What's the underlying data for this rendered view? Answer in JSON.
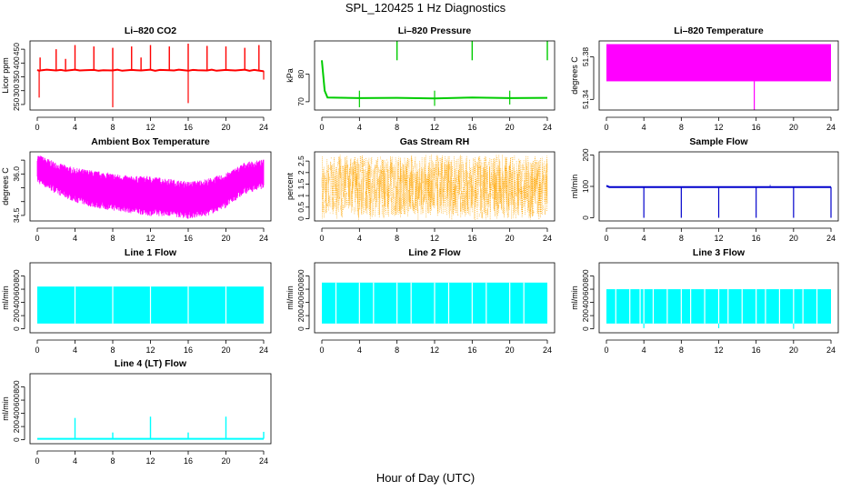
{
  "page": {
    "title": "SPL_120425  1 Hz Diagnostics",
    "xlabel": "Hour of Day (UTC)"
  },
  "chart_data": [
    {
      "type": "line",
      "title": "Li–820 CO2",
      "ylabel": "Licor ppm",
      "color": "#ff0000",
      "xlim": [
        0,
        24
      ],
      "xticks": [
        "0",
        "4",
        "8",
        "12",
        "16",
        "20",
        "24"
      ],
      "ylim": [
        230,
        480
      ],
      "yticks": [
        250,
        300,
        350,
        400,
        450
      ],
      "series": [
        {
          "x": [
            0,
            0.2,
            0.5,
            1,
            2,
            2.5,
            3,
            4,
            4.5,
            5,
            6,
            6.5,
            7,
            8,
            8.5,
            9,
            10,
            10.5,
            11,
            12,
            12.5,
            13,
            14,
            14.5,
            15,
            16,
            16.5,
            17,
            18,
            18.5,
            19,
            20,
            20.5,
            21,
            22,
            22.5,
            23,
            24
          ],
          "y": [
            375,
            372,
            374,
            376,
            373,
            375,
            372,
            376,
            373,
            374,
            375,
            372,
            374,
            373,
            376,
            372,
            375,
            374,
            373,
            376,
            372,
            375,
            374,
            373,
            376,
            372,
            375,
            374,
            373,
            376,
            372,
            375,
            374,
            373,
            376,
            372,
            375,
            370
          ]
        }
      ],
      "spikes_up": [
        [
          0.3,
          420
        ],
        [
          2,
          450
        ],
        [
          3,
          415
        ],
        [
          4,
          465
        ],
        [
          6,
          460
        ],
        [
          8,
          455
        ],
        [
          10,
          460
        ],
        [
          11,
          420
        ],
        [
          12,
          465
        ],
        [
          14,
          460
        ],
        [
          16,
          470
        ],
        [
          18,
          462
        ],
        [
          20,
          460
        ],
        [
          22,
          455
        ],
        [
          23.5,
          465
        ]
      ],
      "spikes_down": [
        [
          0.2,
          275
        ],
        [
          8,
          240
        ],
        [
          16,
          255
        ],
        [
          24,
          340
        ]
      ]
    },
    {
      "type": "line",
      "title": "Li–820 Pressure",
      "ylabel": "kPa",
      "color": "#00cc00",
      "xlim": [
        0,
        24
      ],
      "xticks": [
        "0",
        "4",
        "8",
        "12",
        "16",
        "20",
        "24"
      ],
      "ylim": [
        67,
        92
      ],
      "yticks": [
        70,
        80
      ],
      "series": [
        {
          "x": [
            0,
            0.3,
            0.6,
            4,
            8,
            12,
            16,
            20,
            24
          ],
          "y": [
            85,
            74,
            71.5,
            71.3,
            71.4,
            71.2,
            71.5,
            71.3,
            71.4
          ]
        }
      ],
      "spikes_up": [
        [
          8,
          92
        ],
        [
          16,
          92
        ],
        [
          24,
          92
        ]
      ],
      "spikes_down": [
        [
          4,
          68
        ],
        [
          12,
          68.5
        ],
        [
          20,
          69
        ]
      ]
    },
    {
      "type": "area",
      "title": "Li–820 Temperature",
      "ylabel": "degrees C",
      "color": "#ff00ff",
      "xlim": [
        0,
        24
      ],
      "xticks": [
        "0",
        "4",
        "8",
        "12",
        "16",
        "20",
        "24"
      ],
      "ylim": [
        51.33,
        51.395
      ],
      "yticks": [
        51.34,
        51.38
      ],
      "band": {
        "low": 51.357,
        "high": 51.392
      },
      "spikes_down": [
        [
          15.8,
          51.33
        ]
      ]
    },
    {
      "type": "area",
      "title": "Ambient Box Temperature",
      "ylabel": "degrees C",
      "color": "#ff00ff",
      "xlim": [
        0,
        24
      ],
      "xticks": [
        "0",
        "4",
        "8",
        "12",
        "16",
        "20",
        "24"
      ],
      "ylim": [
        34.3,
        36.8
      ],
      "yticks": [
        34.5,
        35.0,
        35.5,
        36.0,
        36.5
      ],
      "yticklabels": [
        "34.5",
        "",
        "",
        "36.0",
        ""
      ],
      "series": [
        {
          "name": "upper",
          "x": [
            0,
            2,
            4,
            6,
            8,
            10,
            12,
            14,
            16,
            18,
            20,
            22,
            24
          ],
          "y": [
            36.6,
            36.3,
            36.1,
            36.0,
            35.9,
            35.8,
            35.8,
            35.7,
            35.6,
            35.7,
            35.9,
            36.3,
            36.4
          ]
        },
        {
          "name": "lower",
          "x": [
            0,
            2,
            4,
            6,
            8,
            10,
            12,
            14,
            16,
            18,
            20,
            22,
            24
          ],
          "y": [
            35.8,
            35.4,
            35.1,
            34.9,
            34.8,
            34.7,
            34.6,
            34.6,
            34.5,
            34.6,
            34.9,
            35.4,
            35.6
          ]
        }
      ]
    },
    {
      "type": "area",
      "title": "Gas Stream RH",
      "ylabel": "percent",
      "color": "#ffa500",
      "xlim": [
        0,
        24
      ],
      "xticks": [
        "0",
        "4",
        "8",
        "12",
        "16",
        "20",
        "24"
      ],
      "ylim": [
        -0.1,
        2.9
      ],
      "yticks": [
        0.0,
        0.5,
        1.0,
        1.5,
        2.0,
        2.5
      ],
      "band": {
        "low": -0.05,
        "high": 2.8
      }
    },
    {
      "type": "line",
      "title": "Sample Flow",
      "ylabel": "ml/min",
      "color": "#0000cc",
      "xlim": [
        0,
        24
      ],
      "xticks": [
        "0",
        "4",
        "8",
        "12",
        "16",
        "20",
        "24"
      ],
      "ylim": [
        -10,
        210
      ],
      "yticks": [
        0,
        100,
        200
      ],
      "series": [
        {
          "x": [
            0,
            0.3,
            24
          ],
          "y": [
            102,
            98,
            98
          ]
        }
      ],
      "spikes_up": [
        [
          17.5,
          104
        ]
      ],
      "spikes_down": [
        [
          4,
          0
        ],
        [
          8,
          0
        ],
        [
          12,
          0
        ],
        [
          16,
          0
        ],
        [
          20,
          0
        ],
        [
          24,
          0
        ]
      ]
    },
    {
      "type": "area",
      "title": "Line 1 Flow",
      "ylabel": "ml/min",
      "color": "#00ffff",
      "xlim": [
        0,
        24
      ],
      "xticks": [
        "0",
        "4",
        "8",
        "12",
        "16",
        "20",
        "24"
      ],
      "ylim": [
        -60,
        1000
      ],
      "yticks": [
        0,
        200,
        400,
        600,
        800
      ],
      "band": {
        "low": 80,
        "high": 640
      },
      "gaps": [
        4,
        8,
        12,
        16,
        20
      ]
    },
    {
      "type": "area",
      "title": "Line 2 Flow",
      "ylabel": "ml/min",
      "color": "#00ffff",
      "xlim": [
        0,
        24
      ],
      "xticks": [
        "0",
        "4",
        "8",
        "12",
        "16",
        "20",
        "24"
      ],
      "ylim": [
        -60,
        1000
      ],
      "yticks": [
        0,
        200,
        400,
        600,
        800
      ],
      "band": {
        "low": 80,
        "high": 700
      },
      "gaps": [
        1.5,
        4,
        5.5,
        8,
        9.5,
        12,
        13.5,
        16,
        17.5,
        20,
        21.5
      ]
    },
    {
      "type": "area",
      "title": "Line 3 Flow",
      "ylabel": "ml/min",
      "color": "#00ffff",
      "xlim": [
        0,
        24
      ],
      "xticks": [
        "0",
        "4",
        "8",
        "12",
        "16",
        "20",
        "24"
      ],
      "ylim": [
        -60,
        1000
      ],
      "yticks": [
        0,
        200,
        400,
        600,
        800
      ],
      "band": {
        "low": 80,
        "high": 600
      },
      "gaps": [
        1,
        2.5,
        3.6,
        4,
        5,
        6.5,
        8,
        9,
        10.5,
        12,
        13,
        14.5,
        16,
        17,
        18.5,
        20,
        21,
        22.5
      ],
      "spikes_down": [
        [
          4,
          10
        ],
        [
          12,
          10
        ],
        [
          20,
          0
        ]
      ]
    },
    {
      "type": "line",
      "title": "Line 4 (LT) Flow",
      "ylabel": "ml/min",
      "color": "#00ffff",
      "xlim": [
        0,
        24
      ],
      "xticks": [
        "0",
        "4",
        "8",
        "12",
        "16",
        "20",
        "24"
      ],
      "ylim": [
        -60,
        1000
      ],
      "yticks": [
        0,
        200,
        400,
        600,
        800
      ],
      "series": [
        {
          "x": [
            0,
            24
          ],
          "y": [
            15,
            15
          ]
        }
      ],
      "spikes_up": [
        [
          4,
          330
        ],
        [
          8,
          110
        ],
        [
          12,
          350
        ],
        [
          16,
          110
        ],
        [
          20,
          350
        ],
        [
          24,
          120
        ]
      ]
    }
  ]
}
